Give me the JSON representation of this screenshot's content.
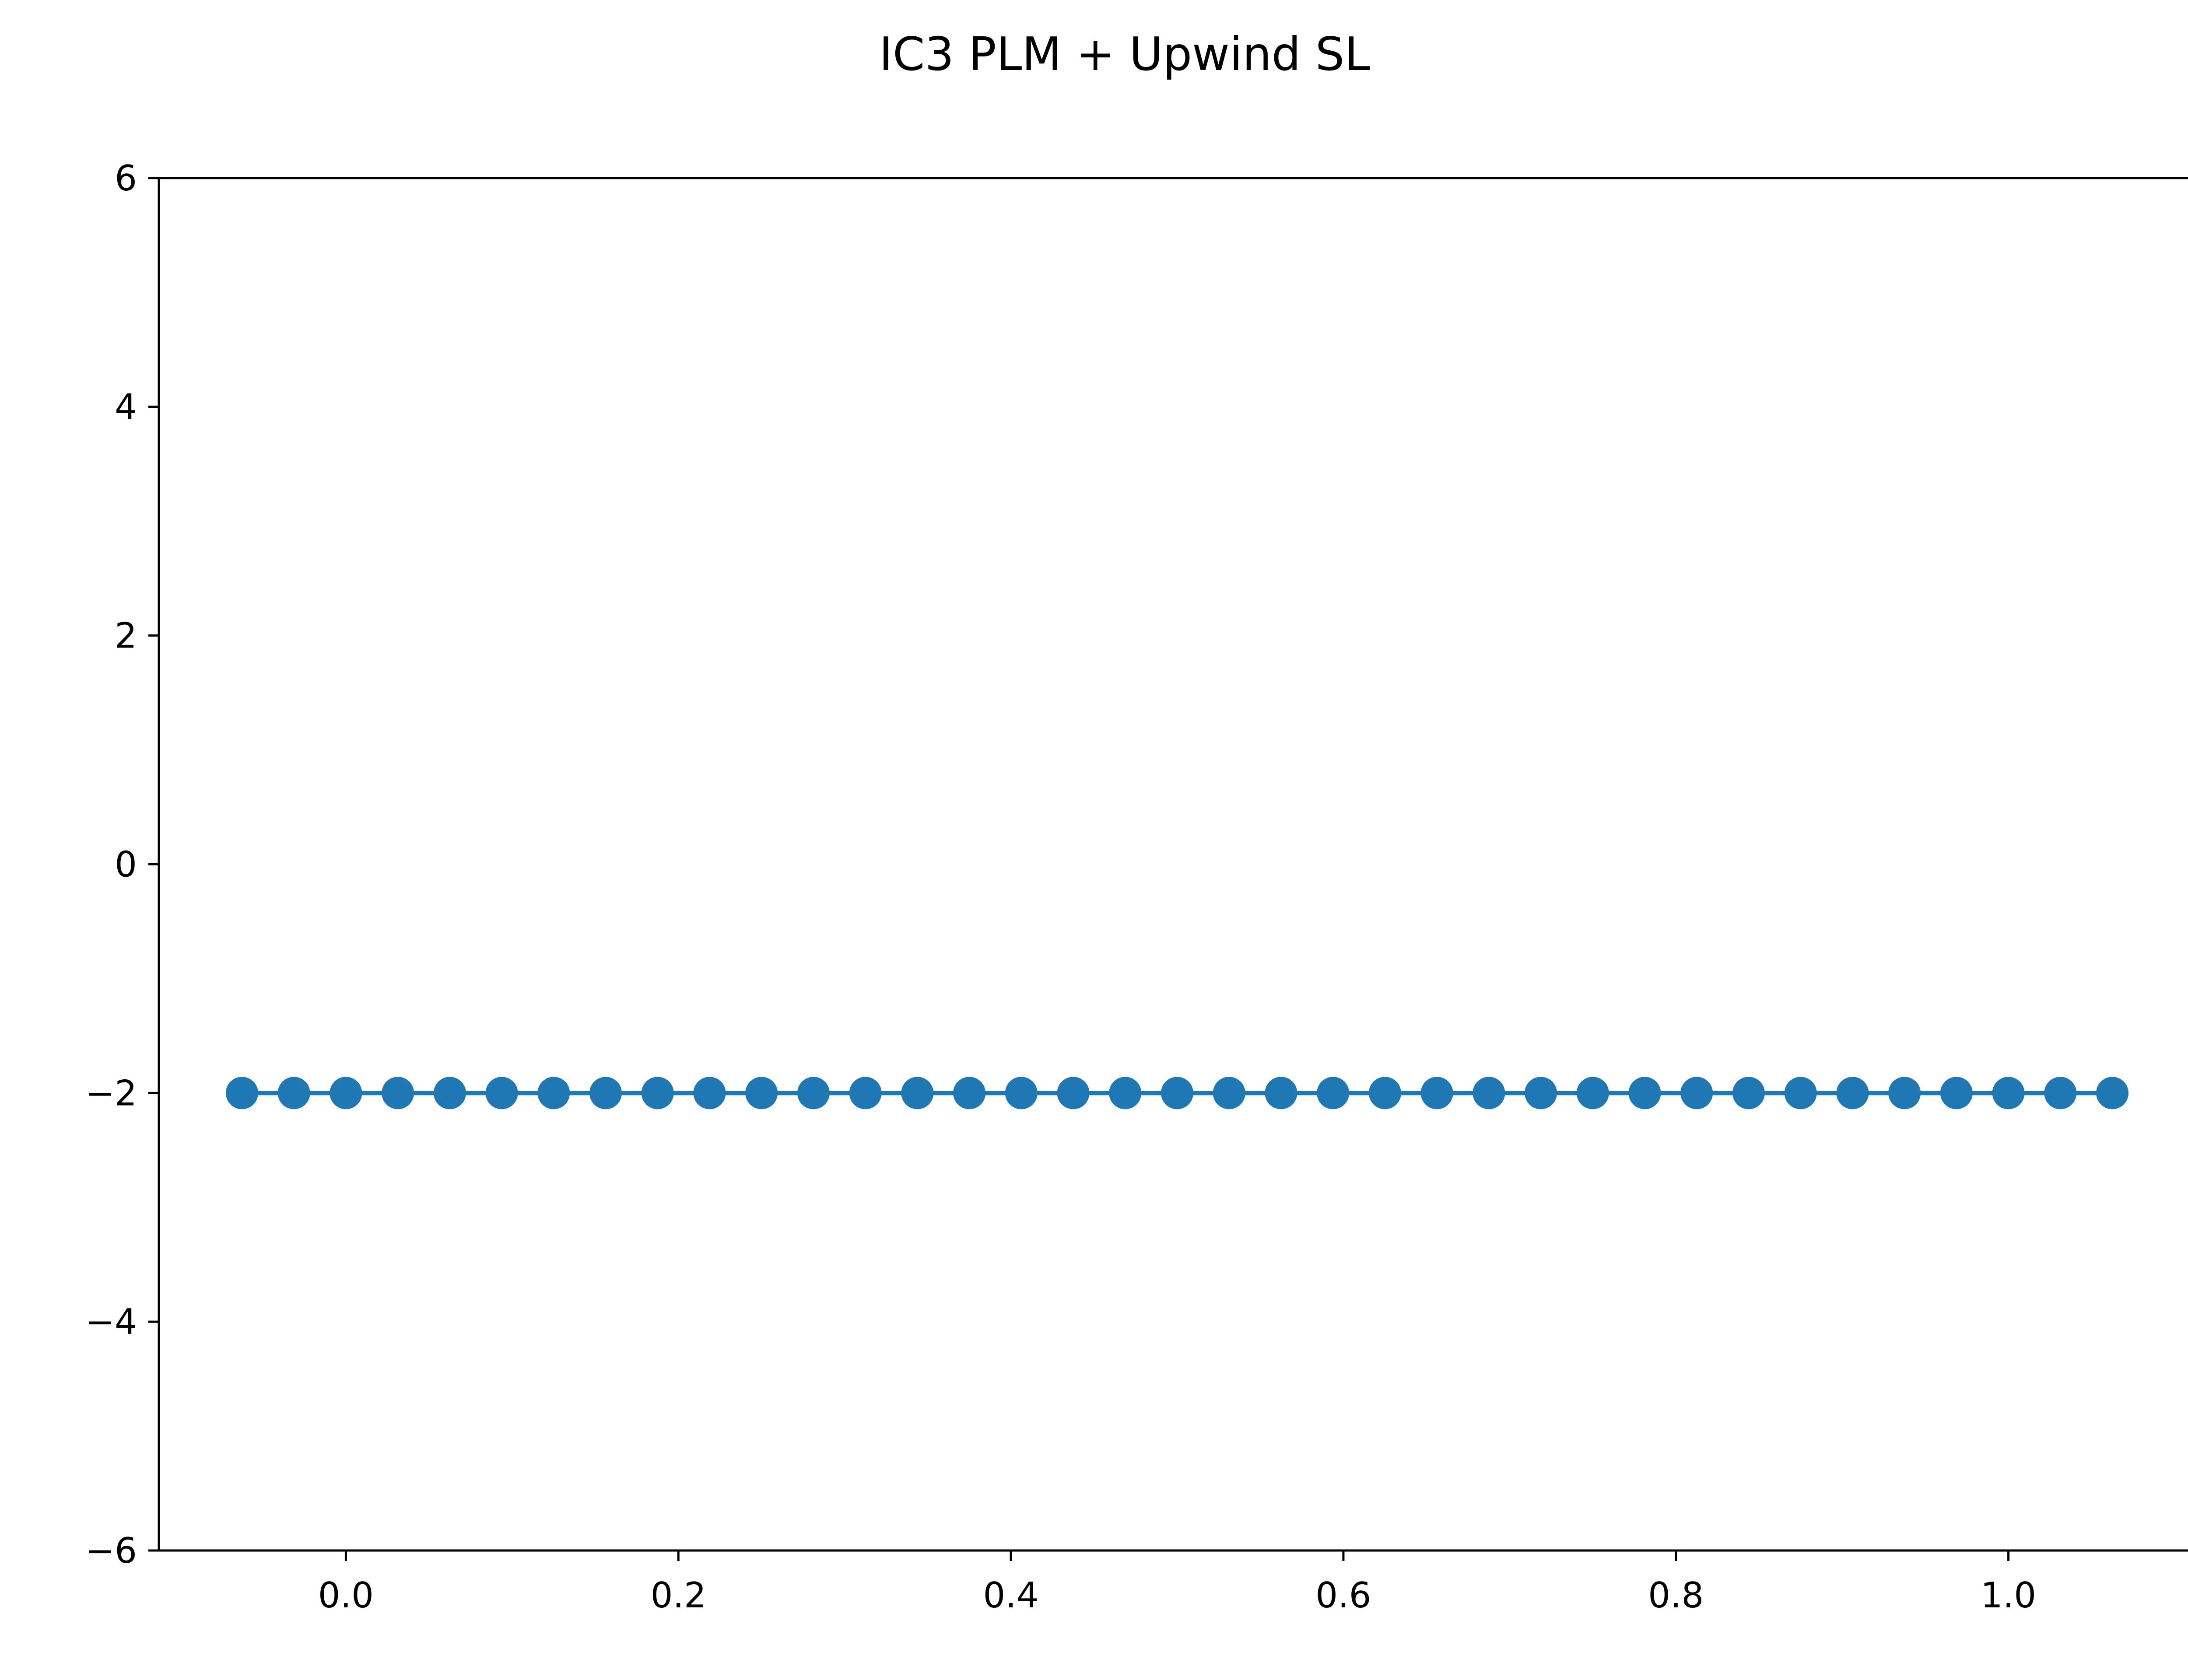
{
  "chart_data": {
    "type": "line",
    "title": "IC3 PLM + Upwind SL",
    "xlabel": "",
    "ylabel": "",
    "xlim": [
      -0.1125,
      1.1125
    ],
    "ylim": [
      -6,
      6
    ],
    "x_ticks": [
      0.0,
      0.2,
      0.4,
      0.6,
      0.8,
      1.0
    ],
    "x_tick_labels": [
      "0.0",
      "0.2",
      "0.4",
      "0.6",
      "0.8",
      "1.0"
    ],
    "y_ticks": [
      6,
      4,
      2,
      0,
      -2,
      -4,
      -6
    ],
    "y_tick_labels": [
      "6",
      "4",
      "2",
      "0",
      "−2",
      "−4",
      "−6"
    ],
    "grid": false,
    "legend": "none",
    "series": [
      {
        "color": "#1f77b4",
        "marker": "circle",
        "x": [
          -0.0625,
          -0.03125,
          0.0,
          0.03125,
          0.0625,
          0.09375,
          0.125,
          0.15625,
          0.1875,
          0.21875,
          0.25,
          0.28125,
          0.3125,
          0.34375,
          0.375,
          0.40625,
          0.4375,
          0.46875,
          0.5,
          0.53125,
          0.5625,
          0.59375,
          0.625,
          0.65625,
          0.6875,
          0.71875,
          0.75,
          0.78125,
          0.8125,
          0.84375,
          0.875,
          0.90625,
          0.9375,
          0.96875,
          1.0,
          1.03125,
          1.0625
        ],
        "values": [
          -2,
          -2,
          -2,
          -2,
          -2,
          -2,
          -2,
          -2,
          -2,
          -2,
          -2,
          -2,
          -2,
          -2,
          -2,
          -2,
          -2,
          -2,
          -2,
          -2,
          -2,
          -2,
          -2,
          -2,
          -2,
          -2,
          -2,
          -2,
          -2,
          -2,
          -2,
          -2,
          -2,
          -2,
          -2,
          -2,
          -2
        ]
      }
    ]
  }
}
